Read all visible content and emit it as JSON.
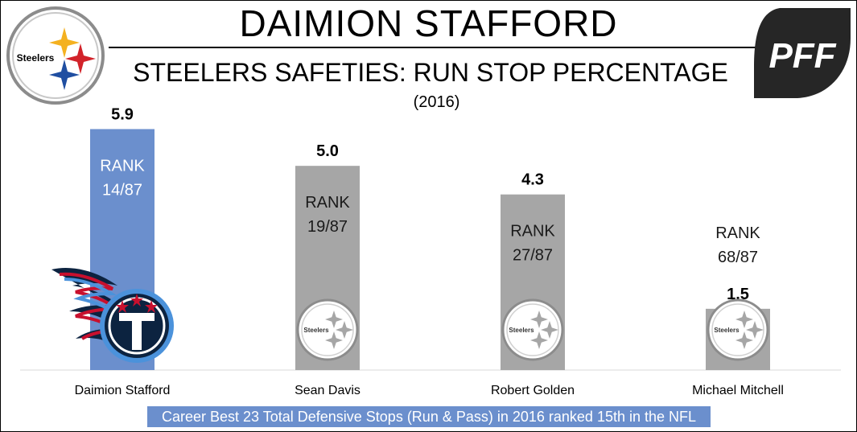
{
  "header": {
    "title": "DAIMION STAFFORD",
    "subtitle": "STEELERS SAFETIES: RUN STOP PERCENTAGE",
    "year": "(2016)"
  },
  "logos": {
    "steelers_text": "Steelers",
    "pff_text": "PFF"
  },
  "footnote": "Career Best 23 Total Defensive Stops (Run & Pass) in 2016 ranked 15th in the NFL",
  "colors": {
    "highlight_bar": "#6b8fcd",
    "other_bar": "#a6a6a6"
  },
  "chart_data": {
    "type": "bar",
    "categories": [
      "Daimion Stafford",
      "Sean Davis",
      "Robert Golden",
      "Michael Mitchell"
    ],
    "values": [
      5.9,
      5.0,
      4.3,
      1.5
    ],
    "value_labels": [
      "5.9",
      "5.0",
      "4.3",
      "1.5"
    ],
    "rank_word": "RANK",
    "ranks": [
      "14/87",
      "19/87",
      "27/87",
      "68/87"
    ],
    "highlight_index": 0,
    "ylim": [
      0,
      6.5
    ],
    "grid": false,
    "legend": "none"
  }
}
